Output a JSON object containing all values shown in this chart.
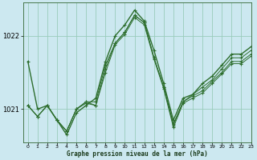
{
  "title": "Graphe pression niveau de la mer (hPa)",
  "background_color": "#cce8f0",
  "grid_color": "#99ccbb",
  "line_color": "#2d6e2d",
  "xlim": [
    -0.5,
    23
  ],
  "ylim": [
    1020.55,
    1022.45
  ],
  "yticks": [
    1021,
    1022
  ],
  "xticks": [
    0,
    1,
    2,
    3,
    4,
    5,
    6,
    7,
    8,
    9,
    10,
    11,
    12,
    13,
    14,
    15,
    16,
    17,
    18,
    19,
    20,
    21,
    22,
    23
  ],
  "hours": [
    0,
    1,
    2,
    3,
    4,
    5,
    6,
    7,
    8,
    9,
    10,
    11,
    12,
    13,
    14,
    15,
    16,
    17,
    18,
    19,
    20,
    21,
    22,
    23
  ],
  "series": [
    [
      1021.65,
      1021.0,
      1021.05,
      1020.85,
      1020.65,
      1020.95,
      1021.05,
      1021.15,
      1021.65,
      1022.0,
      1022.15,
      1022.35,
      1022.2,
      1021.8,
      1021.35,
      1020.85,
      1021.15,
      1021.2,
      1021.35,
      1021.45,
      1021.6,
      1021.75,
      1021.75,
      1021.85
    ],
    [
      1021.05,
      1020.9,
      1021.05,
      1020.85,
      1020.7,
      1021.0,
      1021.1,
      1021.1,
      1021.6,
      1021.9,
      1022.05,
      1022.28,
      1022.18,
      1021.7,
      1021.3,
      1020.8,
      1021.1,
      1021.2,
      1021.3,
      1021.4,
      1021.55,
      1021.7,
      1021.7,
      1021.8
    ],
    [
      1021.05,
      1020.9,
      1021.05,
      1020.85,
      1020.7,
      1021.0,
      1021.1,
      1021.05,
      1021.55,
      1021.9,
      1022.05,
      1022.28,
      1022.18,
      1021.7,
      1021.3,
      1020.78,
      1021.1,
      1021.18,
      1021.25,
      1021.38,
      1021.5,
      1021.65,
      1021.65,
      1021.75
    ],
    [
      1021.05,
      1020.9,
      1021.05,
      1020.85,
      1020.7,
      1021.0,
      1021.08,
      1021.05,
      1021.5,
      1021.88,
      1022.02,
      1022.25,
      1022.15,
      1021.68,
      1021.28,
      1020.75,
      1021.08,
      1021.15,
      1021.22,
      1021.35,
      1021.48,
      1021.62,
      1021.62,
      1021.72
    ]
  ]
}
